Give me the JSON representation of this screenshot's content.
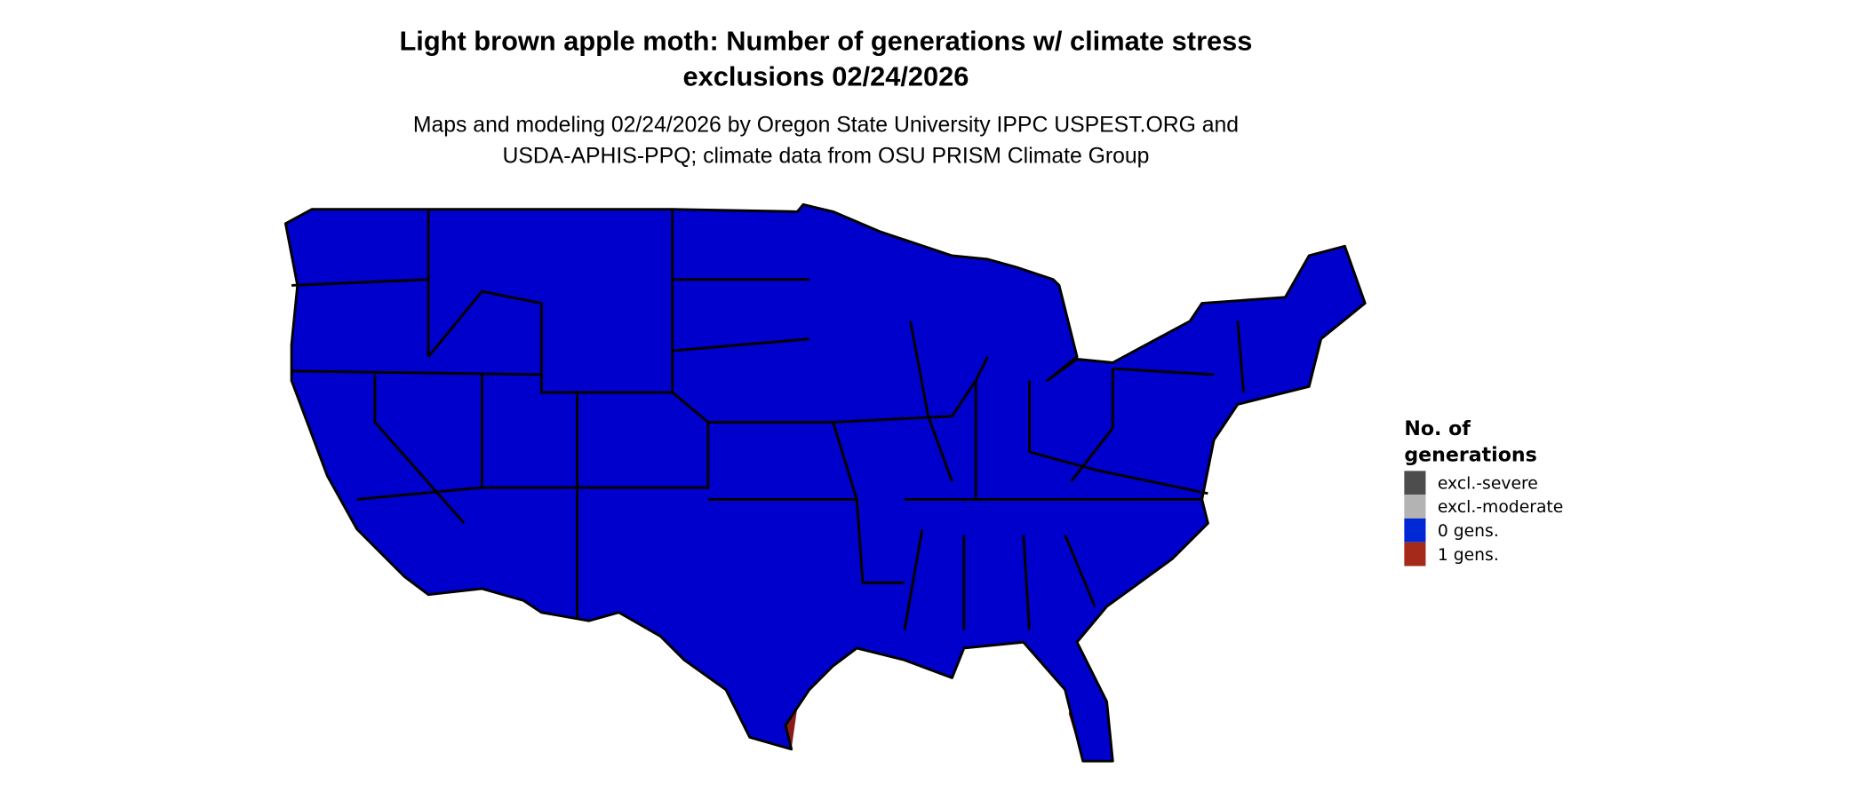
{
  "title": {
    "line1": "Light brown apple moth: Number of generations w/ climate stress",
    "line2": "exclusions 02/24/2026"
  },
  "subtitle": {
    "line1": "Maps and modeling 02/24/2026 by Oregon State University IPPC USPEST.ORG and",
    "line2": "USDA-APHIS-PPQ; climate data from OSU PRISM Climate Group"
  },
  "legend": {
    "title_line1": "No. of",
    "title_line2": "generations",
    "items": [
      {
        "label": "excl.-severe",
        "color": "#4d4d4d"
      },
      {
        "label": "excl.-moderate",
        "color": "#b3b3b3"
      },
      {
        "label": "0 gens.",
        "color": "#0028d4"
      },
      {
        "label": "1 gens.",
        "color": "#a52a1a"
      }
    ]
  },
  "map_colors": {
    "zero_gens": "#0000cc",
    "one_gen_light": "#ff4500",
    "one_gen_dark": "#8b1a1a",
    "excl_moderate": "#b3b3b3",
    "excl_severe": "#4d4d4d"
  }
}
